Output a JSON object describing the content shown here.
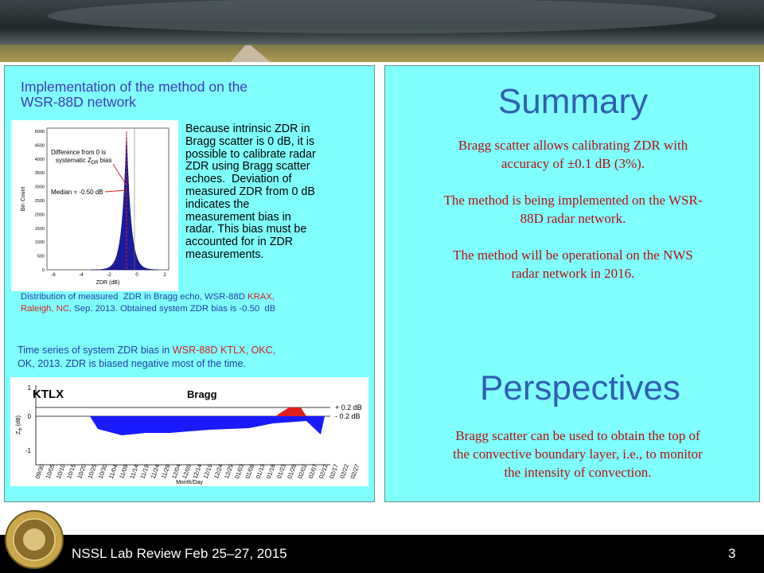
{
  "left_panel": {
    "heading_lines": [
      "Implementation of the method on the",
      "WSR-88D network"
    ],
    "histogram": {
      "y_label": "Bin Count",
      "x_label": "ZDR (dB)",
      "y_ticks": [
        0,
        500,
        1000,
        1500,
        2000,
        2500,
        3000,
        3500,
        4000,
        4500,
        5000
      ],
      "x_ticks": [
        -6,
        -4,
        -2,
        0,
        2
      ],
      "annotation_line1": "Difference from 0 is",
      "annotation_line2": "systematic Z",
      "annotation_sub": "DR",
      "annotation_end": " bias",
      "median": "Median = -0.50 dB"
    },
    "paragraph_lines": [
      "Because intrinsic ZDR in",
      "Bragg scatter is 0 dB, it is",
      "possible to calibrate radar",
      "ZDR using Bragg scatter",
      "echoes.  Deviation of",
      "measured ZDR from 0 dB",
      "indicates the",
      "measurement bias in",
      "radar. This bias must be",
      "accounted for in ZDR",
      "measurements."
    ],
    "caption1": [
      [
        {
          "text": "Distribution of measured  ZDR in Bragg echo, WSR-88D ",
          "color": "#1f3fa8"
        },
        {
          "text": "KRAX,",
          "color": "#d02020"
        }
      ],
      [
        {
          "text": "Raleigh, NC,",
          "color": "#d02020"
        },
        {
          "text": " Sep. 2013. Obtained system ZDR bias is -0.50  dB",
          "color": "#1f3fa8"
        }
      ]
    ],
    "caption2": [
      [
        {
          "text": "Time series of system ZDR bias in ",
          "color": "#1f3fa8"
        },
        {
          "text": "WSR-88D KTLX, OKC,",
          "color": "#d02020"
        }
      ],
      [
        {
          "text": "OK, 2013. ZDR is biased negative most of the time.",
          "color": "#1f3fa8"
        }
      ]
    ],
    "timeseries": {
      "radar": "KTLX",
      "method": "Bragg",
      "upper": "+ 0.2 dB",
      "lower": "- 0.2 dB",
      "y_label": "Z",
      "y_label_sub": "dr",
      "y_label_end": " (dB)",
      "y_ticks": [
        1,
        0,
        -1
      ],
      "dates": [
        "09/30",
        "10/05",
        "10/10",
        "10/15",
        "10/20",
        "10/25",
        "10/30",
        "11/04",
        "11/09",
        "11/14",
        "11/19",
        "11/24",
        "11/29",
        "12/04",
        "12/09",
        "12/14",
        "12/19",
        "12/24",
        "12/29",
        "01/03",
        "01/08",
        "01/13",
        "01/18",
        "01/23",
        "01/28",
        "02/02",
        "02/07",
        "02/12",
        "02/17",
        "02/22",
        "02/27"
      ],
      "x_label": "Month/Day"
    }
  },
  "right_panel": {
    "summary_title": "Summary",
    "summary_paragraphs": [
      [
        "Bragg scatter allows calibrating ZDR with",
        "accuracy of ±0.1 dB (3%)."
      ],
      [
        "The method is being implemented on the WSR-",
        "88D radar network."
      ],
      [
        "The method will be operational on the NWS",
        "radar network in 2016."
      ]
    ],
    "perspectives_title": "Perspectives",
    "perspectives_lines": [
      "Bragg scatter can be used to obtain the top of",
      "the convective boundary layer, i.e., to monitor",
      "the intensity of convection."
    ]
  },
  "footer": {
    "text": "NSSL Lab Review Feb 25–27, 2015",
    "page": "3"
  }
}
